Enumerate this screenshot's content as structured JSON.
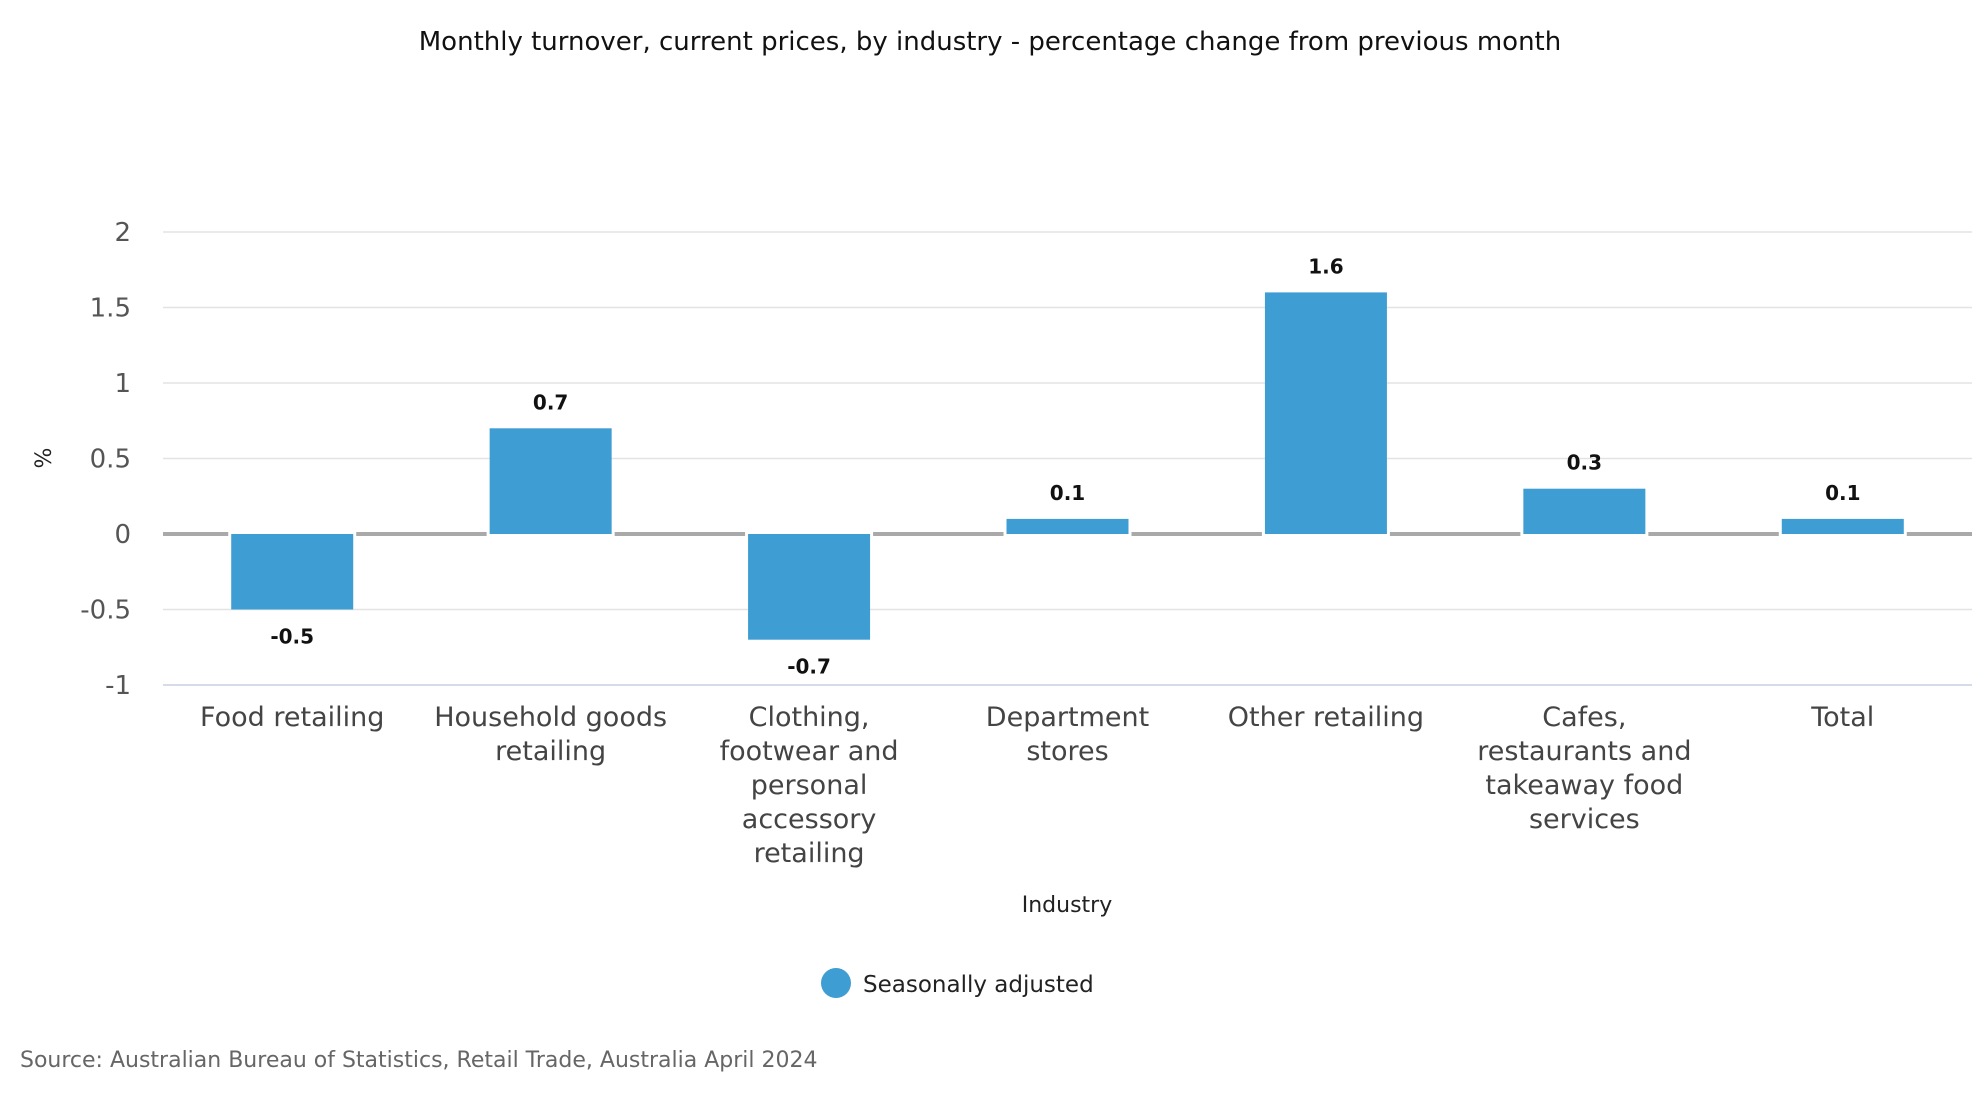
{
  "chart_data": {
    "type": "bar",
    "title": "Monthly turnover, current prices, by industry - percentage change from previous month",
    "xlabel": "Industry",
    "ylabel": "%",
    "categories": [
      "Food retailing",
      "Household goods retailing",
      "Clothing, footwear and personal accessory retailing",
      "Department stores",
      "Other retailing",
      "Cafes, restaurants and takeaway food services",
      "Total"
    ],
    "category_label_lines": [
      [
        "Food retailing"
      ],
      [
        "Household goods",
        "retailing"
      ],
      [
        "Clothing,",
        "footwear and",
        "personal",
        "accessory",
        "retailing"
      ],
      [
        "Department",
        "stores"
      ],
      [
        "Other retailing"
      ],
      [
        "Cafes,",
        "restaurants and",
        "takeaway food",
        "services"
      ],
      [
        "Total"
      ]
    ],
    "series": [
      {
        "name": "Seasonally adjusted",
        "values": [
          -0.5,
          0.7,
          -0.7,
          0.1,
          1.6,
          0.3,
          0.1
        ],
        "data_labels": [
          "-0.5",
          "0.7",
          "-0.7",
          "0.1",
          "1.6",
          "0.3",
          "0.1"
        ],
        "color": "#3e9dd3"
      }
    ],
    "ylim": [
      -1,
      2
    ],
    "yticks": [
      2,
      1.5,
      1,
      0.5,
      0,
      -0.5,
      -1
    ],
    "ytick_labels": [
      "2",
      "1.5",
      "1",
      "0.5",
      "0",
      "-0.5",
      "-1"
    ],
    "grid": true,
    "legend_position": "bottom-center",
    "source": "Source: Australian Bureau of Statistics, Retail Trade, Australia April 2024"
  }
}
